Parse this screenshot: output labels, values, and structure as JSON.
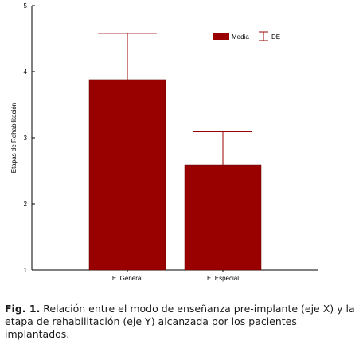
{
  "chart_data": {
    "type": "bar",
    "categories": [
      "E. General",
      "E. Especial"
    ],
    "series": [
      {
        "name": "Media",
        "values": [
          3.88,
          2.59
        ],
        "error": [
          0.7,
          0.5
        ],
        "color": "#990000"
      }
    ],
    "error_label": "DE",
    "ylabel": "Etapas de Rehabilitación",
    "xlabel": "",
    "ylim": [
      1,
      5
    ],
    "yticks": [
      "1",
      "2",
      "3",
      "4",
      "5"
    ],
    "legend_position": "top-right",
    "grid": false
  },
  "caption": {
    "label": "Fig. 1.",
    "text": " Relación entre el modo de enseñanza pre-implante (eje X) y la etapa de rehabilitación (eje Y) alcanzada por los pacientes implantados."
  }
}
